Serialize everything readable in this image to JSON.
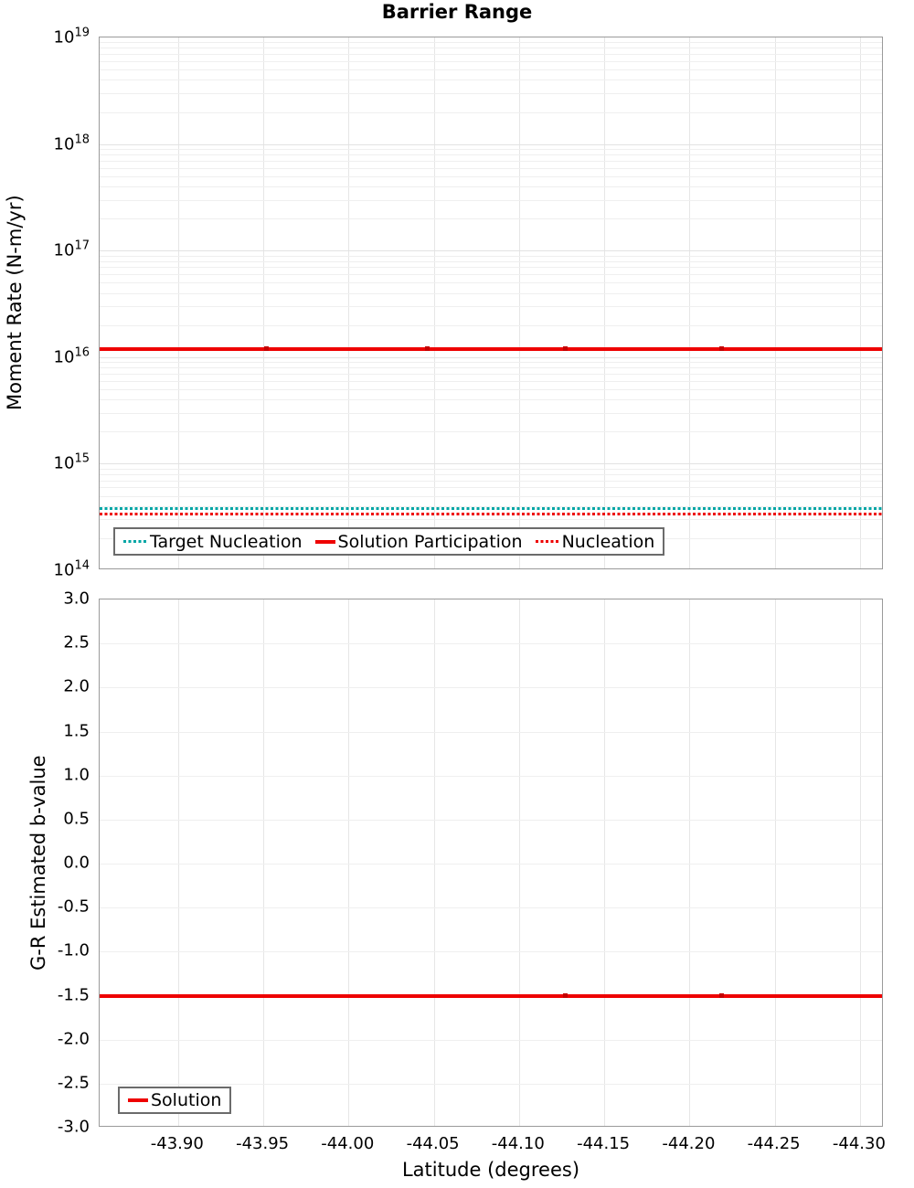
{
  "title": "Barrier Range",
  "colors": {
    "red": "#ee0000",
    "red_marker": "#c40000",
    "teal": "#00a5a5",
    "grid_minor": "#efefef",
    "grid_major": "#e2e2e2",
    "plot_border": "#9a9a9a",
    "legend_border": "#6b6b6b"
  },
  "chart_data": [
    {
      "type": "line",
      "title": "Barrier Range",
      "ylabel": "Moment Rate (N-m/yr)",
      "yscale": "log",
      "ylim": [
        100000000000000.0,
        1e+19
      ],
      "y_ticks": [
        {
          "base": "10",
          "exp": "19",
          "value": 1e+19
        },
        {
          "base": "10",
          "exp": "18",
          "value": 1e+18
        },
        {
          "base": "10",
          "exp": "17",
          "value": 1e+17
        },
        {
          "base": "10",
          "exp": "16",
          "value": 1e+16
        },
        {
          "base": "10",
          "exp": "15",
          "value": 1000000000000000.0
        },
        {
          "base": "10",
          "exp": "14",
          "value": 100000000000000.0
        }
      ],
      "x_reversed": true,
      "xlim": [
        -43.854,
        -44.314
      ],
      "grid": true,
      "legend_position": "bottom-left",
      "series": [
        {
          "name": "Target Nucleation",
          "color": "#00a5a5",
          "style": "dotted",
          "width": 3,
          "value": 380000000000000.0
        },
        {
          "name": "Solution Participation",
          "color": "#ee0000",
          "style": "solid",
          "width": 4,
          "value": 1.2e+16,
          "marker_lats": [
            -43.952,
            -44.046,
            -44.127,
            -44.219
          ]
        },
        {
          "name": "Nucleation",
          "color": "#ee0000",
          "style": "dotted",
          "width": 3,
          "value": 340000000000000.0
        }
      ]
    },
    {
      "type": "line",
      "ylabel": "G-R Estimated b-value",
      "xlabel": "Latitude (degrees)",
      "yscale": "linear",
      "ylim": [
        -3.0,
        3.0
      ],
      "y_tick_step": 0.5,
      "y_ticks": [
        {
          "label": "3.0",
          "value": 3.0
        },
        {
          "label": "2.5",
          "value": 2.5
        },
        {
          "label": "2.0",
          "value": 2.0
        },
        {
          "label": "1.5",
          "value": 1.5
        },
        {
          "label": "1.0",
          "value": 1.0
        },
        {
          "label": "0.5",
          "value": 0.5
        },
        {
          "label": "0.0",
          "value": 0.0
        },
        {
          "label": "-0.5",
          "value": -0.5
        },
        {
          "label": "-1.0",
          "value": -1.0
        },
        {
          "label": "-1.5",
          "value": -1.5
        },
        {
          "label": "-2.0",
          "value": -2.0
        },
        {
          "label": "-2.5",
          "value": -2.5
        },
        {
          "label": "-3.0",
          "value": -3.0
        }
      ],
      "x_reversed": true,
      "xlim": [
        -43.854,
        -44.314
      ],
      "x_ticks": [
        {
          "label": "-43.90",
          "value": -43.9
        },
        {
          "label": "-43.95",
          "value": -43.95
        },
        {
          "label": "-44.00",
          "value": -44.0
        },
        {
          "label": "-44.05",
          "value": -44.05
        },
        {
          "label": "-44.10",
          "value": -44.1
        },
        {
          "label": "-44.15",
          "value": -44.15
        },
        {
          "label": "-44.20",
          "value": -44.2
        },
        {
          "label": "-44.25",
          "value": -44.25
        },
        {
          "label": "-44.30",
          "value": -44.3
        }
      ],
      "grid": true,
      "legend_position": "bottom-left",
      "series": [
        {
          "name": "Solution",
          "color": "#ee0000",
          "style": "solid",
          "width": 4,
          "value": -1.5,
          "marker_lats": [
            -44.127,
            -44.219
          ]
        }
      ]
    }
  ]
}
